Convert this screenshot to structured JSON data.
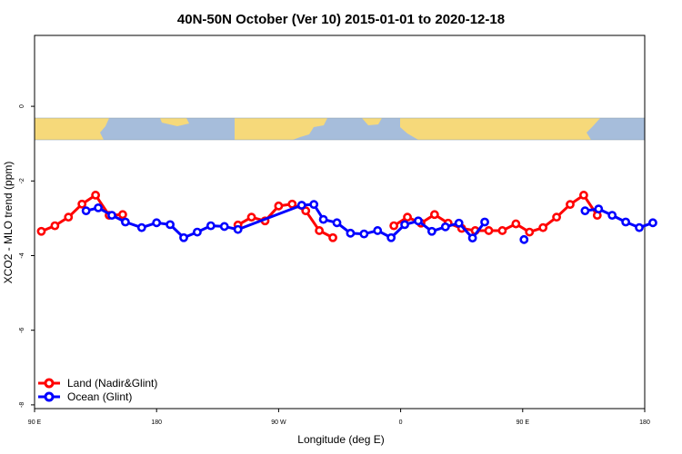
{
  "chart_data": {
    "type": "line",
    "title": "40N-50N October (Ver 10)   2015-01-01 to 2020-12-18",
    "xlabel": "Longitude (deg E)",
    "ylabel": "XCO2 - MLO trend (ppm)",
    "xlim": [
      90,
      540
    ],
    "ylim": [
      -8.1,
      1.9
    ],
    "x_ticks": [
      {
        "value": 90,
        "label": "90 E"
      },
      {
        "value": 180,
        "label": "180"
      },
      {
        "value": 270,
        "label": "90 W"
      },
      {
        "value": 360,
        "label": "0"
      },
      {
        "value": 450,
        "label": "90 E"
      },
      {
        "value": 540,
        "label": "180"
      }
    ],
    "y_ticks": [
      {
        "value": 0,
        "label": "0"
      },
      {
        "value": -2,
        "label": "-2"
      },
      {
        "value": -4,
        "label": "-4"
      },
      {
        "value": -6,
        "label": "-6"
      },
      {
        "value": -8,
        "label": "-8"
      }
    ],
    "grid": false,
    "legend_position": "bottom-left",
    "map_strip": {
      "y_top": -0.35,
      "y_bottom": -0.9,
      "ocean_color": "#a6bddb",
      "land_color": "#f6d97a"
    },
    "series": [
      {
        "name": "Land (Nadir&Glint)",
        "color": "#ff0000",
        "segments": [
          [
            [
              95,
              -3.35
            ],
            [
              105,
              -3.2
            ],
            [
              115,
              -2.97
            ],
            [
              125,
              -2.62
            ],
            [
              135,
              -2.38
            ],
            [
              145,
              -2.92
            ],
            [
              155,
              -2.9
            ]
          ],
          [
            [
              240,
              -3.18
            ],
            [
              250,
              -2.97
            ],
            [
              260,
              -3.07
            ],
            [
              270,
              -2.67
            ],
            [
              280,
              -2.62
            ],
            [
              290,
              -2.8
            ],
            [
              300,
              -3.33
            ],
            [
              310,
              -3.52
            ]
          ],
          [
            [
              355,
              -3.2
            ],
            [
              365,
              -2.97
            ],
            [
              375,
              -3.13
            ],
            [
              385,
              -2.9
            ],
            [
              395,
              -3.13
            ],
            [
              405,
              -3.27
            ],
            [
              415,
              -3.33
            ],
            [
              425,
              -3.33
            ],
            [
              435,
              -3.33
            ],
            [
              445,
              -3.15
            ],
            [
              455,
              -3.37
            ],
            [
              465,
              -3.25
            ],
            [
              475,
              -2.97
            ],
            [
              485,
              -2.63
            ],
            [
              495,
              -2.38
            ],
            [
              505,
              -2.92
            ]
          ]
        ]
      },
      {
        "name": "Ocean (Glint)",
        "color": "#0000ff",
        "segments": [
          [
            [
              128,
              -2.8
            ],
            [
              137,
              -2.72
            ],
            [
              147,
              -2.92
            ],
            [
              157,
              -3.1
            ],
            [
              169,
              -3.25
            ],
            [
              180,
              -3.12
            ],
            [
              190,
              -3.17
            ],
            [
              200,
              -3.52
            ],
            [
              210,
              -3.37
            ],
            [
              220,
              -3.2
            ],
            [
              230,
              -3.22
            ],
            [
              240,
              -3.3
            ],
            [
              287,
              -2.65
            ],
            [
              296,
              -2.63
            ],
            [
              303,
              -3.03
            ],
            [
              313,
              -3.12
            ],
            [
              323,
              -3.4
            ],
            [
              333,
              -3.42
            ],
            [
              343,
              -3.33
            ],
            [
              353,
              -3.52
            ],
            [
              363,
              -3.17
            ],
            [
              373,
              -3.07
            ],
            [
              383,
              -3.35
            ],
            [
              393,
              -3.23
            ],
            [
              403,
              -3.13
            ],
            [
              413,
              -3.53
            ],
            [
              422,
              -3.1
            ]
          ],
          [
            [
              451,
              -3.57
            ]
          ],
          [
            [
              496,
              -2.8
            ],
            [
              506,
              -2.75
            ],
            [
              516,
              -2.92
            ],
            [
              526,
              -3.1
            ],
            [
              536,
              -3.25
            ],
            [
              546,
              -3.12
            ]
          ]
        ]
      }
    ]
  }
}
